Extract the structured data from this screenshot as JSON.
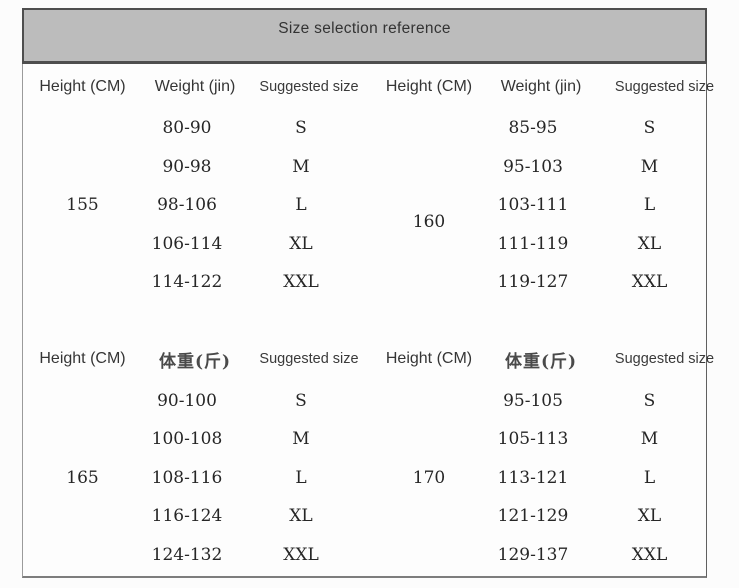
{
  "title": "Size selection reference",
  "colors": {
    "title_bar_bg": "#bcbcbc",
    "title_border": "#4e4e4e",
    "body_bg": "#fdfdfd",
    "text": "#262626"
  },
  "chart_data": {
    "type": "table",
    "title": "Size selection reference",
    "sections": [
      {
        "headers": [
          "Height (CM)",
          "Weight (jin)",
          "Suggested size",
          "Height (CM)",
          "Weight (jin)",
          "Suggested size"
        ],
        "left": {
          "height": "155",
          "rows": [
            {
              "weight": "80-90",
              "size": "S"
            },
            {
              "weight": "90-98",
              "size": "M"
            },
            {
              "weight": "98-106",
              "size": "L"
            },
            {
              "weight": "106-114",
              "size": "XL"
            },
            {
              "weight": "114-122",
              "size": "XXL"
            }
          ]
        },
        "right": {
          "height": "160",
          "rows": [
            {
              "weight": "85-95",
              "size": "S"
            },
            {
              "weight": "95-103",
              "size": "M"
            },
            {
              "weight": "103-111",
              "size": "L"
            },
            {
              "weight": "111-119",
              "size": "XL"
            },
            {
              "weight": "119-127",
              "size": "XXL"
            }
          ]
        }
      },
      {
        "headers": [
          "Height (CM)",
          "体重(斤)",
          "Suggested size",
          "Height (CM)",
          "体重(斤)",
          "Suggested size"
        ],
        "left": {
          "height": "165",
          "rows": [
            {
              "weight": "90-100",
              "size": "S"
            },
            {
              "weight": "100-108",
              "size": "M"
            },
            {
              "weight": "108-116",
              "size": "L"
            },
            {
              "weight": "116-124",
              "size": "XL"
            },
            {
              "weight": "124-132",
              "size": "XXL"
            }
          ]
        },
        "right": {
          "height": "170",
          "rows": [
            {
              "weight": "95-105",
              "size": "S"
            },
            {
              "weight": "105-113",
              "size": "M"
            },
            {
              "weight": "113-121",
              "size": "L"
            },
            {
              "weight": "121-129",
              "size": "XL"
            },
            {
              "weight": "129-137",
              "size": "XXL"
            }
          ]
        }
      }
    ]
  }
}
